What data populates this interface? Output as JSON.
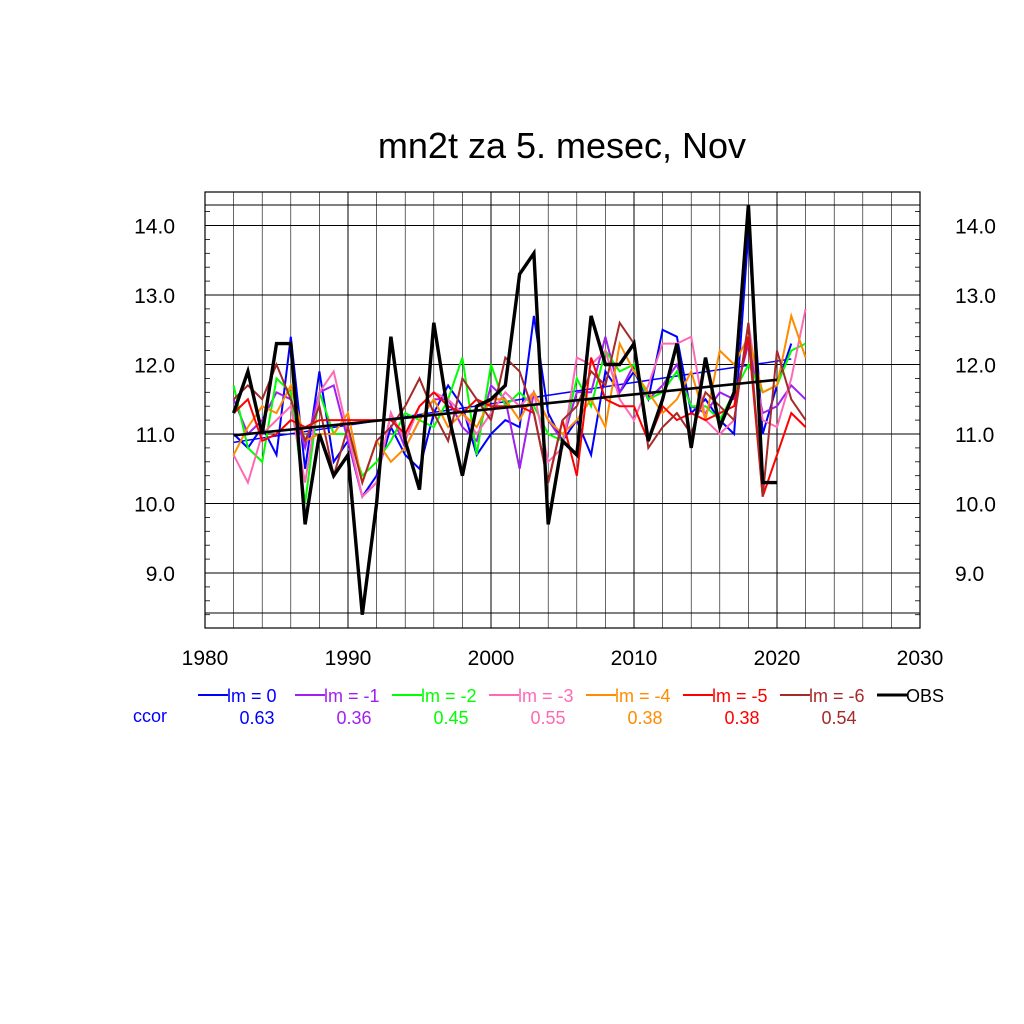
{
  "chart_data": {
    "type": "line",
    "title": "mn2t za 5. mesec, Nov",
    "xlabel": "",
    "ylabel": "",
    "xlim": [
      1980,
      2030
    ],
    "ylim": [
      8.3,
      14.3
    ],
    "x_ticks": [
      "1980",
      "1990",
      "2000",
      "2010",
      "2020",
      "2030"
    ],
    "y_ticks": [
      "9.0",
      "10.0",
      "11.0",
      "12.0",
      "13.0",
      "14.0"
    ],
    "grid": true,
    "legend_placement": "bottom",
    "ccor_label": "ccor",
    "x": [
      1982,
      1983,
      1984,
      1985,
      1986,
      1987,
      1988,
      1989,
      1990,
      1991,
      1992,
      1993,
      1994,
      1995,
      1996,
      1997,
      1998,
      1999,
      2000,
      2001,
      2002,
      2003,
      2004,
      2005,
      2006,
      2007,
      2008,
      2009,
      2010,
      2011,
      2012,
      2013,
      2014,
      2015,
      2016,
      2017,
      2018,
      2019,
      2020,
      2021,
      2022
    ],
    "series": [
      {
        "name": "lm = 0",
        "ccor": "0.63",
        "color": "#0000ff",
        "width": 2,
        "values": [
          11.0,
          10.8,
          11.1,
          10.7,
          12.4,
          10.5,
          11.9,
          10.6,
          10.9,
          10.1,
          10.4,
          11.1,
          10.7,
          10.5,
          11.3,
          11.7,
          11.4,
          10.7,
          11.0,
          11.2,
          11.1,
          12.7,
          11.3,
          10.9,
          11.2,
          10.7,
          11.9,
          11.6,
          11.9,
          11.5,
          12.5,
          12.4,
          11.3,
          11.5,
          11.2,
          11.0,
          13.9,
          11.0,
          11.7,
          12.3,
          null
        ],
        "trend": [
          [
            1982,
            10.88
          ],
          [
            2021,
            12.08
          ]
        ]
      },
      {
        "name": "lm = -1",
        "ccor": "0.36",
        "color": "#a020f0",
        "width": 2,
        "values": [
          11.5,
          11.0,
          11.2,
          11.6,
          11.5,
          10.8,
          11.6,
          11.7,
          10.9,
          10.1,
          10.3,
          11.3,
          10.8,
          11.2,
          11.5,
          11.5,
          11.1,
          10.9,
          11.7,
          11.5,
          10.5,
          11.6,
          11.2,
          10.9,
          11.6,
          11.6,
          12.4,
          11.6,
          12.0,
          11.5,
          11.7,
          12.0,
          11.4,
          11.3,
          11.6,
          11.5,
          12.3,
          11.3,
          11.4,
          11.7,
          11.5
        ]
      },
      {
        "name": "lm = -2",
        "ccor": "0.45",
        "color": "#00ff00",
        "width": 2,
        "values": [
          11.7,
          10.8,
          10.6,
          11.8,
          11.6,
          10.0,
          11.6,
          11.0,
          11.0,
          10.4,
          10.6,
          10.9,
          11.3,
          11.2,
          11.1,
          11.5,
          12.1,
          10.7,
          12.0,
          11.4,
          11.6,
          11.4,
          11.0,
          10.9,
          11.8,
          11.4,
          12.2,
          11.9,
          12.0,
          11.5,
          11.6,
          11.9,
          11.4,
          11.4,
          11.2,
          11.6,
          12.0,
          11.6,
          11.7,
          12.2,
          12.3
        ]
      },
      {
        "name": "lm = -3",
        "ccor": "0.55",
        "color": "#ff69b4",
        "width": 2,
        "values": [
          10.7,
          10.3,
          11.0,
          11.2,
          11.4,
          10.3,
          11.6,
          11.9,
          11.0,
          10.1,
          10.3,
          11.3,
          10.9,
          11.4,
          11.6,
          11.5,
          11.3,
          11.0,
          11.3,
          11.6,
          11.4,
          11.6,
          10.6,
          10.8,
          12.1,
          12.0,
          12.2,
          11.5,
          11.2,
          11.7,
          12.3,
          12.3,
          12.4,
          11.2,
          11.0,
          11.2,
          12.6,
          11.2,
          11.1,
          11.8,
          12.8
        ]
      },
      {
        "name": "lm = -4",
        "ccor": "0.38",
        "color": "#ff8c00",
        "width": 2,
        "values": [
          10.7,
          11.1,
          11.4,
          11.3,
          11.7,
          10.9,
          11.0,
          11.0,
          11.3,
          10.3,
          10.9,
          10.6,
          10.8,
          11.2,
          11.5,
          11.1,
          11.3,
          11.1,
          11.5,
          11.5,
          11.2,
          11.6,
          11.2,
          11.0,
          11.2,
          11.5,
          11.1,
          12.3,
          11.9,
          11.6,
          11.3,
          11.5,
          11.9,
          11.2,
          12.2,
          12.0,
          12.4,
          11.6,
          11.7,
          12.7,
          12.1
        ]
      },
      {
        "name": "lm = -5",
        "ccor": "0.38",
        "color": "#ff0000",
        "width": 2,
        "values": [
          11.3,
          11.5,
          10.9,
          11.0,
          11.2,
          11.1,
          11.2,
          11.2,
          11.2,
          11.2,
          11.2,
          11.2,
          11.0,
          11.4,
          11.6,
          11.4,
          11.3,
          11.5,
          11.4,
          11.4,
          11.4,
          11.3,
          10.3,
          11.2,
          10.4,
          12.1,
          11.5,
          11.4,
          11.4,
          10.9,
          11.4,
          11.2,
          11.3,
          11.2,
          11.3,
          11.4,
          12.4,
          10.1,
          10.7,
          11.3,
          11.1
        ]
      },
      {
        "name": "lm = -6",
        "ccor": "0.54",
        "color": "#a52a2a",
        "width": 2,
        "values": [
          11.5,
          11.7,
          11.5,
          12.0,
          11.5,
          10.9,
          11.4,
          10.4,
          11.1,
          10.3,
          10.9,
          11.1,
          11.4,
          11.8,
          11.3,
          10.9,
          11.8,
          11.5,
          11.2,
          12.1,
          11.9,
          11.3,
          10.3,
          11.2,
          11.4,
          11.9,
          11.7,
          12.6,
          12.3,
          10.8,
          11.1,
          11.3,
          11.0,
          11.6,
          11.4,
          11.2,
          12.6,
          10.1,
          12.2,
          11.5,
          11.2
        ]
      },
      {
        "name": "OBS",
        "ccor": "",
        "color": "#000000",
        "width": 3.4,
        "values": [
          11.3,
          11.9,
          11.0,
          12.3,
          12.3,
          9.7,
          11.0,
          10.4,
          10.7,
          8.4,
          10.0,
          12.4,
          10.9,
          10.2,
          12.6,
          11.3,
          10.4,
          11.4,
          11.5,
          11.7,
          13.3,
          13.6,
          9.7,
          10.9,
          10.7,
          12.7,
          12.0,
          12.0,
          12.3,
          10.9,
          11.5,
          12.3,
          10.8,
          12.1,
          11.1,
          11.6,
          14.3,
          10.3,
          10.3,
          null,
          null
        ],
        "step_at": 2019,
        "trend": [
          [
            1982,
            10.98
          ],
          [
            2020,
            11.78
          ]
        ]
      }
    ]
  }
}
